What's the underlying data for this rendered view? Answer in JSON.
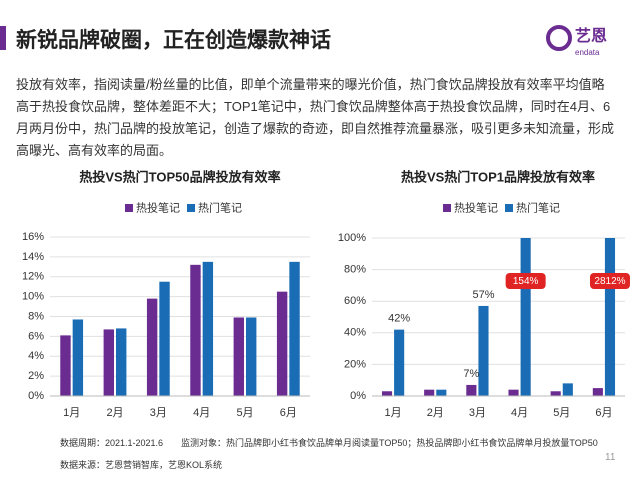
{
  "header": {
    "title": "新锐品牌破圈，正在创造爆款神话",
    "logo": "艺恩",
    "logo_sub": "endata"
  },
  "paragraph": "投放有效率，指阅读量/粉丝量的比值，即单个流量带来的曝光价值，热门食饮品牌投放有效率平均值略高于热投食饮品牌，整体差距不大；TOP1笔记中，热门食饮品牌整体高于热投食饮品牌，同时在4月、6月两月份中，热门品牌的投放笔记，创造了爆款的奇迹，即自然推荐流量暴涨，吸引更多未知流量，形成高曝光、高有效率的局面。",
  "chart_data": [
    {
      "type": "bar",
      "title": "热投VS热门TOP50品牌投放有效率",
      "categories": [
        "1月",
        "2月",
        "3月",
        "4月",
        "5月",
        "6月"
      ],
      "series": [
        {
          "name": "热投笔记",
          "color": "#6b2c91",
          "values": [
            6.1,
            6.7,
            9.8,
            13.2,
            7.9,
            10.5
          ]
        },
        {
          "name": "热门笔记",
          "color": "#1a6db5",
          "values": [
            7.7,
            6.8,
            11.5,
            13.5,
            7.9,
            13.5
          ]
        }
      ],
      "ylim": [
        0,
        16
      ],
      "yticks": [
        {
          "value": 0,
          "label": "0%"
        },
        {
          "value": 2,
          "label": "2%"
        },
        {
          "value": 4,
          "label": "4%"
        },
        {
          "value": 6,
          "label": "6%"
        },
        {
          "value": 8,
          "label": "8%"
        },
        {
          "value": 10,
          "label": "10%"
        },
        {
          "value": 12,
          "label": "12%"
        },
        {
          "value": 14,
          "label": "14%"
        },
        {
          "value": 16,
          "label": "16%"
        }
      ],
      "grid": true
    },
    {
      "type": "bar",
      "title": "热投VS热门TOP1品牌投放有效率",
      "categories": [
        "1月",
        "2月",
        "3月",
        "4月",
        "5月",
        "6月"
      ],
      "series": [
        {
          "name": "热投笔记",
          "color": "#6b2c91",
          "values": [
            3,
            4,
            7,
            4,
            3,
            5
          ],
          "value_labels": [
            null,
            null,
            "7%",
            null,
            null,
            null
          ]
        },
        {
          "name": "热门笔记",
          "color": "#1a6db5",
          "values": [
            42,
            4,
            57,
            154,
            8,
            2812
          ],
          "value_labels": [
            "42%",
            null,
            "57%",
            "154%",
            null,
            "2812%"
          ]
        }
      ],
      "ylim": [
        0,
        100
      ],
      "yticks": [
        {
          "value": 0,
          "label": "0%"
        },
        {
          "value": 20,
          "label": "20%"
        },
        {
          "value": 40,
          "label": "40%"
        },
        {
          "value": 60,
          "label": "60%"
        },
        {
          "value": 80,
          "label": "80%"
        },
        {
          "value": 100,
          "label": "100%"
        }
      ],
      "grid": true
    }
  ],
  "footer": {
    "notes": [
      "数据周期：2021.1-2021.6　　监测对象：热门品牌即小红书食饮品牌单月阅读量TOP50；热投品牌即小红书食饮品牌单月投放量TOP50",
      "数据来源：艺恩营销智库，艺恩KOL系统"
    ],
    "page": "11"
  }
}
